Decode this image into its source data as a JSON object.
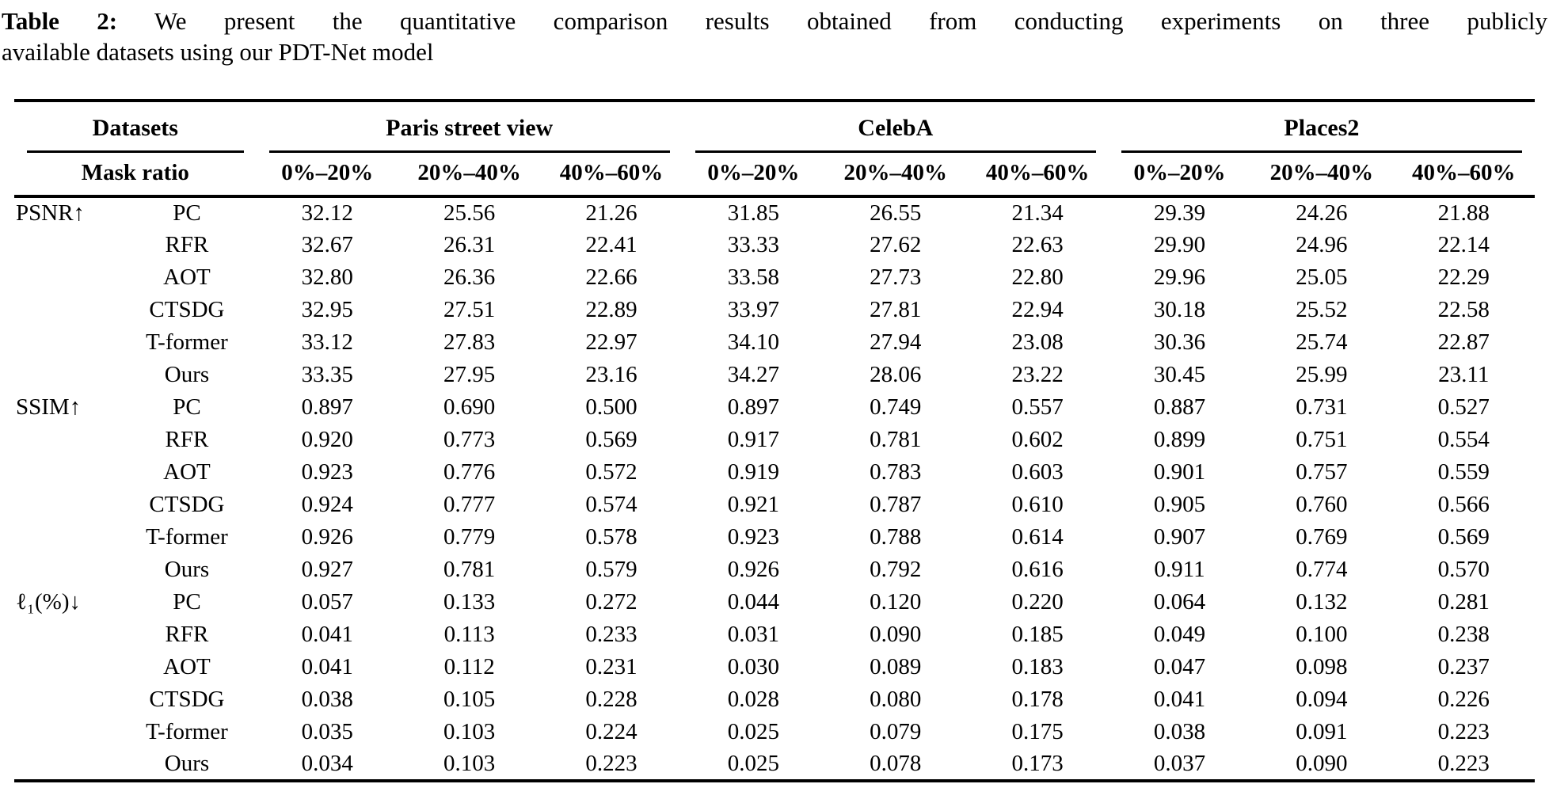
{
  "caption": {
    "label": "Table 2:",
    "line1": "We present the quantitative comparison results obtained from conducting experiments on three publicly",
    "line2": "available datasets using our PDT-Net model"
  },
  "table": {
    "header": {
      "datasets_label": "Datasets",
      "mask_ratio_label": "Mask ratio",
      "groups": [
        {
          "name": "Paris street view",
          "cols": [
            "0%–20%",
            "20%–40%",
            "40%–60%"
          ]
        },
        {
          "name": "CelebA",
          "cols": [
            "0%–20%",
            "20%–40%",
            "40%–60%"
          ]
        },
        {
          "name": "Places2",
          "cols": [
            "0%–20%",
            "20%–40%",
            "40%–60%"
          ]
        }
      ]
    },
    "sections": [
      {
        "metric": "PSNR↑",
        "rows": [
          {
            "method": "PC",
            "values": [
              "32.12",
              "25.56",
              "21.26",
              "31.85",
              "26.55",
              "21.34",
              "29.39",
              "24.26",
              "21.88"
            ]
          },
          {
            "method": "RFR",
            "values": [
              "32.67",
              "26.31",
              "22.41",
              "33.33",
              "27.62",
              "22.63",
              "29.90",
              "24.96",
              "22.14"
            ]
          },
          {
            "method": "AOT",
            "values": [
              "32.80",
              "26.36",
              "22.66",
              "33.58",
              "27.73",
              "22.80",
              "29.96",
              "25.05",
              "22.29"
            ]
          },
          {
            "method": "CTSDG",
            "values": [
              "32.95",
              "27.51",
              "22.89",
              "33.97",
              "27.81",
              "22.94",
              "30.18",
              "25.52",
              "22.58"
            ]
          },
          {
            "method": "T-former",
            "values": [
              "33.12",
              "27.83",
              "22.97",
              "34.10",
              "27.94",
              "23.08",
              "30.36",
              "25.74",
              "22.87"
            ]
          },
          {
            "method": "Ours",
            "values": [
              "33.35",
              "27.95",
              "23.16",
              "34.27",
              "28.06",
              "23.22",
              "30.45",
              "25.99",
              "23.11"
            ]
          }
        ]
      },
      {
        "metric": "SSIM↑",
        "rows": [
          {
            "method": "PC",
            "values": [
              "0.897",
              "0.690",
              "0.500",
              "0.897",
              "0.749",
              "0.557",
              "0.887",
              "0.731",
              "0.527"
            ]
          },
          {
            "method": "RFR",
            "values": [
              "0.920",
              "0.773",
              "0.569",
              "0.917",
              "0.781",
              "0.602",
              "0.899",
              "0.751",
              "0.554"
            ]
          },
          {
            "method": "AOT",
            "values": [
              "0.923",
              "0.776",
              "0.572",
              "0.919",
              "0.783",
              "0.603",
              "0.901",
              "0.757",
              "0.559"
            ]
          },
          {
            "method": "CTSDG",
            "values": [
              "0.924",
              "0.777",
              "0.574",
              "0.921",
              "0.787",
              "0.610",
              "0.905",
              "0.760",
              "0.566"
            ]
          },
          {
            "method": "T-former",
            "values": [
              "0.926",
              "0.779",
              "0.578",
              "0.923",
              "0.788",
              "0.614",
              "0.907",
              "0.769",
              "0.569"
            ]
          },
          {
            "method": "Ours",
            "values": [
              "0.927",
              "0.781",
              "0.579",
              "0.926",
              "0.792",
              "0.616",
              "0.911",
              "0.774",
              "0.570"
            ]
          }
        ]
      },
      {
        "metric": "ℓ₁(%)↓",
        "rows": [
          {
            "method": "PC",
            "values": [
              "0.057",
              "0.133",
              "0.272",
              "0.044",
              "0.120",
              "0.220",
              "0.064",
              "0.132",
              "0.281"
            ]
          },
          {
            "method": "RFR",
            "values": [
              "0.041",
              "0.113",
              "0.233",
              "0.031",
              "0.090",
              "0.185",
              "0.049",
              "0.100",
              "0.238"
            ]
          },
          {
            "method": "AOT",
            "values": [
              "0.041",
              "0.112",
              "0.231",
              "0.030",
              "0.089",
              "0.183",
              "0.047",
              "0.098",
              "0.237"
            ]
          },
          {
            "method": "CTSDG",
            "values": [
              "0.038",
              "0.105",
              "0.228",
              "0.028",
              "0.080",
              "0.178",
              "0.041",
              "0.094",
              "0.226"
            ]
          },
          {
            "method": "T-former",
            "values": [
              "0.035",
              "0.103",
              "0.224",
              "0.025",
              "0.079",
              "0.175",
              "0.038",
              "0.091",
              "0.223"
            ]
          },
          {
            "method": "Ours",
            "values": [
              "0.034",
              "0.103",
              "0.223",
              "0.025",
              "0.078",
              "0.173",
              "0.037",
              "0.090",
              "0.223"
            ]
          }
        ]
      }
    ]
  },
  "colors": {
    "text": "#000000",
    "background": "#ffffff",
    "rule": "#000000"
  }
}
